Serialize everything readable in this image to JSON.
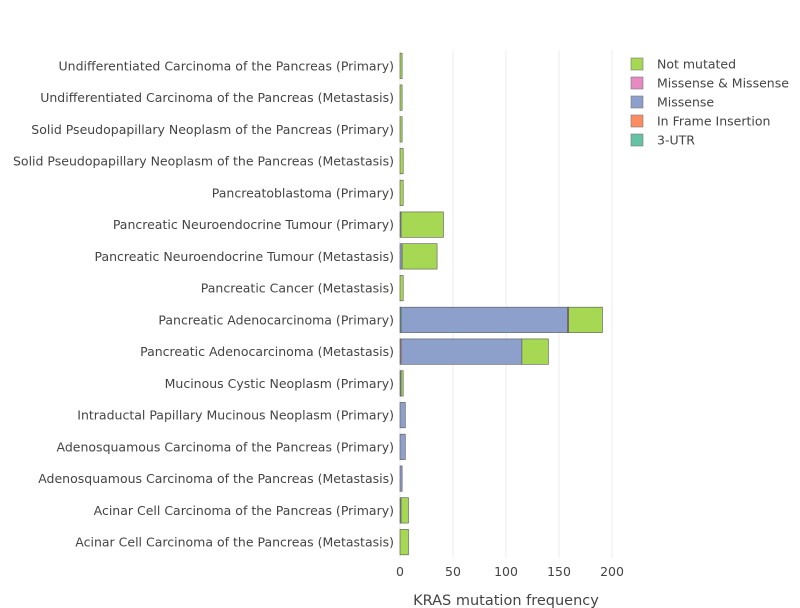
{
  "chart_data": {
    "type": "bar",
    "orientation": "horizontal",
    "stacked": true,
    "xlabel": "KRAS mutation frequency",
    "ylabel": "",
    "xlim": [
      0,
      220
    ],
    "xticks": [
      0,
      50,
      100,
      150,
      200
    ],
    "xtick_labels": [
      "0",
      "50",
      "100",
      "150",
      "200"
    ],
    "grid": true,
    "legend_position": "top-right",
    "categories": [
      "Undifferentiated Carcinoma of the Pancreas (Primary)",
      "Undifferentiated Carcinoma of the Pancreas (Metastasis)",
      "Solid Pseudopapillary Neoplasm of the Pancreas (Primary)",
      "Solid Pseudopapillary Neoplasm of the Pancreas (Metastasis)",
      "Pancreatoblastoma (Primary)",
      "Pancreatic Neuroendocrine Tumour (Primary)",
      "Pancreatic Neuroendocrine Tumour (Metastasis)",
      "Pancreatic Cancer (Metastasis)",
      "Pancreatic Adenocarcinoma (Primary)",
      "Pancreatic Adenocarcinoma (Metastasis)",
      "Mucinous Cystic Neoplasm (Primary)",
      "Intraductal Papillary Mucinous Neoplasm (Primary)",
      "Adenosquamous Carcinoma of the Pancreas (Primary)",
      "Adenosquamous Carcinoma of the Pancreas (Metastasis)",
      "Acinar Cell Carcinoma of the Pancreas (Primary)",
      "Acinar Cell Carcinoma of the Pancreas (Metastasis)"
    ],
    "series": [
      {
        "name": "3-UTR",
        "color": "#66c2a5",
        "values": [
          0,
          0,
          0,
          0,
          0,
          0,
          0,
          0,
          1,
          0,
          0,
          0,
          0,
          0,
          0,
          0
        ]
      },
      {
        "name": "In Frame Insertion",
        "color": "#fc8d62",
        "values": [
          0,
          0,
          0,
          0,
          0,
          0,
          0,
          0,
          0,
          1,
          0,
          0,
          0,
          0,
          0,
          0
        ]
      },
      {
        "name": "Missense",
        "color": "#8da0cb",
        "values": [
          0,
          0,
          0,
          0,
          0,
          1,
          2,
          0,
          157,
          114,
          1,
          5,
          5,
          2,
          1,
          0
        ]
      },
      {
        "name": "Missense & Missense",
        "color": "#e78ac3",
        "values": [
          0,
          0,
          0,
          0,
          0,
          0,
          0,
          0,
          1,
          0,
          0,
          0,
          0,
          0,
          0,
          0
        ]
      },
      {
        "name": "Not mutated",
        "color": "#a6d854",
        "values": [
          2,
          2,
          2,
          3,
          3,
          40,
          33,
          3,
          32,
          25,
          2,
          0,
          0,
          0,
          7,
          8
        ]
      }
    ],
    "legend_order": [
      "Not mutated",
      "Missense & Missense",
      "Missense",
      "In Frame Insertion",
      "3-UTR"
    ]
  }
}
